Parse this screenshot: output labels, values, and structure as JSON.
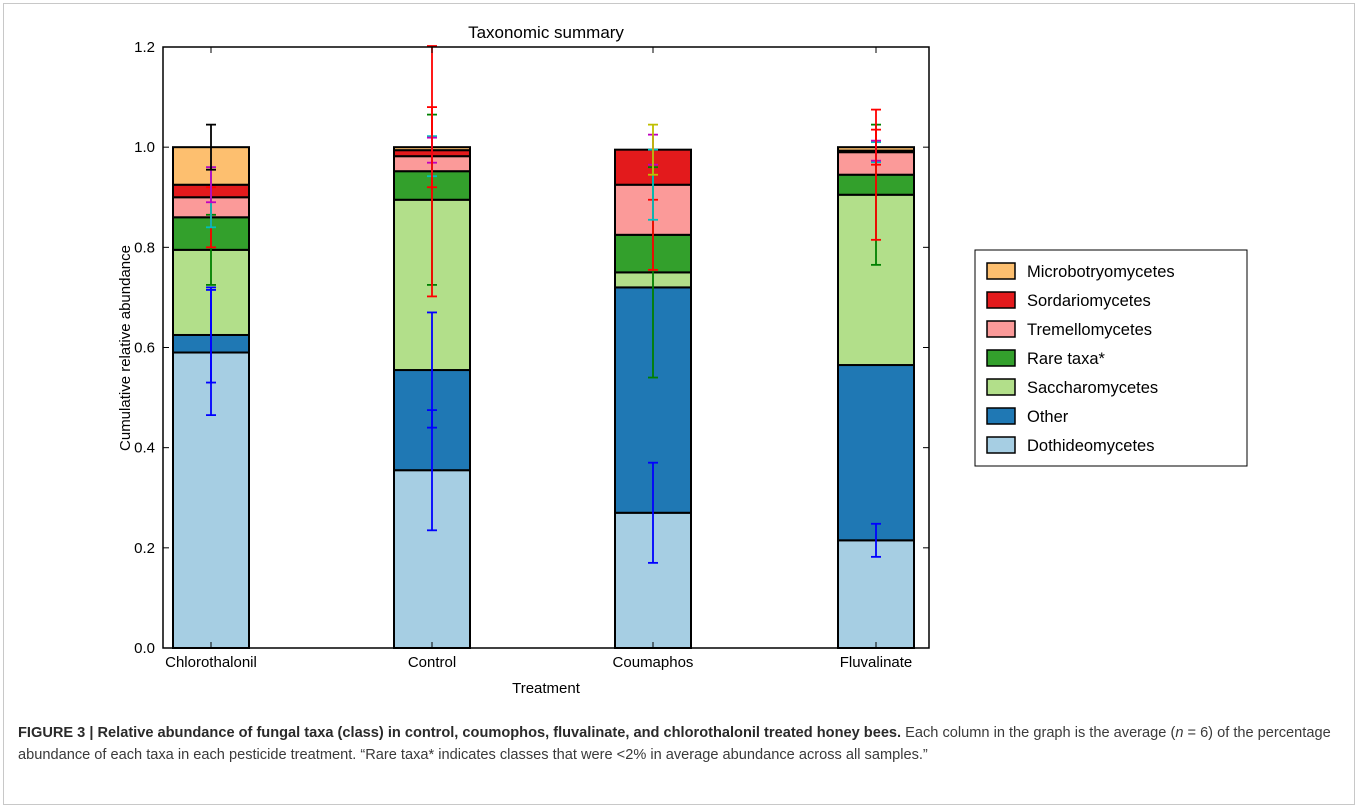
{
  "chart_data": {
    "type": "bar",
    "stacked": true,
    "title": "Taxonomic summary",
    "xlabel": "Treatment",
    "ylabel": "Cumulative relative abundance",
    "ylim": [
      0.0,
      1.2
    ],
    "yticks": [
      "0.0",
      "0.2",
      "0.4",
      "0.6",
      "0.8",
      "1.0",
      "1.2"
    ],
    "categories": [
      "Chlorothalonil",
      "Control",
      "Coumaphos",
      "Fluvalinate"
    ],
    "legend_position": "right",
    "series": [
      {
        "name": "Dothideomycetes",
        "color": "#a6cee3",
        "values": [
          0.59,
          0.355,
          0.27,
          0.215
        ],
        "err_color": "#0000ff",
        "err": [
          0.125,
          0.12,
          0.1,
          0.033
        ]
      },
      {
        "name": "Other",
        "color": "#1f78b4",
        "values": [
          0.035,
          0.2,
          0.45,
          0.35
        ],
        "err_color": "#0000ff",
        "err": [
          0.095,
          0.115,
          0.0,
          0.0
        ]
      },
      {
        "name": "Saccharomycetes",
        "color": "#b2df8a",
        "values": [
          0.17,
          0.34,
          0.03,
          0.34
        ],
        "err_color": "#008000",
        "err": [
          0.07,
          0.17,
          0.21,
          0.14
        ]
      },
      {
        "name": "Rare taxa*",
        "color": "#33a02c",
        "values": [
          0.065,
          0.057,
          0.075,
          0.04
        ],
        "err_color": "#ff0000",
        "err": [
          0.06,
          0.25,
          0.07,
          0.13
        ]
      },
      {
        "name": "Tremellomycetes",
        "color": "#fb9a99",
        "values": [
          0.04,
          0.03,
          0.1,
          0.045
        ],
        "err_color": "#00bfbf",
        "err": [
          0.06,
          0.04,
          0.07,
          0.02
        ]
      },
      {
        "name": "Sordariomycetes",
        "color": "#e31a1c",
        "values": [
          0.025,
          0.012,
          0.07,
          0.003
        ],
        "err_color": "#bf00bf",
        "err": [
          0.035,
          0.025,
          0.03,
          0.02
        ]
      },
      {
        "name": "Microbotryomycetes",
        "color": "#fdbf6f",
        "values": [
          0.075,
          0.006,
          0.0,
          0.007
        ],
        "err_color": "#000000",
        "err": [
          0.045,
          0.005,
          0.0,
          0.005
        ]
      }
    ],
    "top_error_colors": [
      "#000000",
      "#ff0000",
      "#bfbf00",
      "#ff0000"
    ],
    "top_error": [
      0.045,
      0.08,
      0.05,
      0.035
    ]
  },
  "caption": {
    "lead": "FIGURE 3 | Relative abundance of fungal taxa (class) in control, coumophos, fluvalinate, and chlorothalonil treated honey bees.",
    "body_a": " Each column in the graph is the average (",
    "n": "n",
    "body_b": " = 6) of the percentage abundance of each taxa in each pesticide treatment. “Rare taxa* indicates classes that were <2% in average abundance across all samples.”"
  }
}
